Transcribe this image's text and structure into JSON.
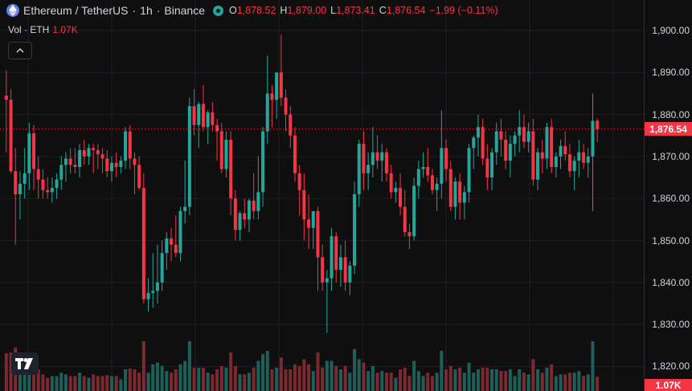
{
  "legend": {
    "symbol": "Ethereum / TetherUS",
    "sep1": "·",
    "interval": "1h",
    "sep2": "·",
    "exchange": "Binance",
    "open_label": "O",
    "open": "1,878.52",
    "high_label": "H",
    "high": "1,879.00",
    "low_label": "L",
    "low": "1,873.41",
    "close_label": "C",
    "close": "1,876.54",
    "change": "−1.99 (−0.11%)"
  },
  "volume": {
    "label": "Vol · ETH",
    "value": "1.07K"
  },
  "price_scale": {
    "ticks": [
      "1,900.00",
      "1,890.00",
      "1,880.00",
      "1,870.00",
      "1,860.00",
      "1,850.00",
      "1,840.00",
      "1,830.00",
      "1,820.00"
    ],
    "current_price": "1,876.54",
    "volume_tag": "1.07K"
  },
  "colors": {
    "up": "#26a69a",
    "down": "#f23645",
    "background": "#0f0f0f",
    "up_volume": "#1f5f5a",
    "down_volume": "#7a2a30"
  },
  "icons": {
    "symbol": "ethereum-icon",
    "status": "market-open-icon",
    "collapse": "chevron-up-icon",
    "logo": "tradingview-logo-icon"
  },
  "chart_data": {
    "type": "candlestick",
    "symbol": "ETHUSDT",
    "interval": "1h",
    "ylim": [
      1820,
      1905
    ],
    "grid": true,
    "last_price": 1876.54,
    "candles": [
      [
        1884.5,
        1890.5,
        1871,
        1883.5
      ],
      [
        1883.5,
        1886,
        1866,
        1866.5
      ],
      [
        1866.5,
        1872,
        1849,
        1861
      ],
      [
        1861,
        1866.5,
        1855,
        1863.5
      ],
      [
        1863.5,
        1872,
        1860,
        1866
      ],
      [
        1866,
        1878,
        1862,
        1875.5
      ],
      [
        1875.5,
        1877.5,
        1862,
        1867
      ],
      [
        1867,
        1870,
        1860,
        1864.5
      ],
      [
        1864.5,
        1867,
        1860,
        1862
      ],
      [
        1862,
        1865,
        1860,
        1861.5
      ],
      [
        1861.5,
        1865,
        1859,
        1862.5
      ],
      [
        1862.5,
        1866,
        1860,
        1864.5
      ],
      [
        1864.5,
        1870,
        1862,
        1868
      ],
      [
        1868,
        1871,
        1864,
        1869.5
      ],
      [
        1869.5,
        1872,
        1866,
        1868
      ],
      [
        1868,
        1872,
        1866,
        1867.5
      ],
      [
        1867.5,
        1873,
        1865,
        1871.5
      ],
      [
        1871.5,
        1874,
        1868,
        1870
      ],
      [
        1870,
        1873,
        1868,
        1872
      ],
      [
        1872,
        1873,
        1866,
        1871.5
      ],
      [
        1871.5,
        1873,
        1867,
        1870.5
      ],
      [
        1870.5,
        1872,
        1866,
        1869.5
      ],
      [
        1869.5,
        1871.5,
        1865,
        1866.5
      ],
      [
        1866.5,
        1870,
        1864,
        1868.5
      ],
      [
        1868.5,
        1871,
        1865,
        1867.5
      ],
      [
        1867.5,
        1870,
        1866,
        1869
      ],
      [
        1869,
        1877,
        1867,
        1876
      ],
      [
        1876,
        1877.5,
        1867,
        1869.5
      ],
      [
        1869.5,
        1871,
        1861,
        1868
      ],
      [
        1868,
        1870,
        1862,
        1862.5
      ],
      [
        1862.5,
        1866,
        1835,
        1836
      ],
      [
        1836,
        1841,
        1833,
        1837.5
      ],
      [
        1837.5,
        1847,
        1834,
        1838
      ],
      [
        1838,
        1849,
        1835,
        1840
      ],
      [
        1840,
        1850,
        1838,
        1847
      ],
      [
        1847,
        1852,
        1843,
        1850.5
      ],
      [
        1850.5,
        1853,
        1845,
        1849
      ],
      [
        1849,
        1856,
        1846,
        1847
      ],
      [
        1847,
        1858,
        1845,
        1857
      ],
      [
        1857,
        1869,
        1854,
        1858
      ],
      [
        1858,
        1884,
        1856,
        1882
      ],
      [
        1882,
        1886,
        1875,
        1877.5
      ],
      [
        1877.5,
        1883,
        1872,
        1882.5
      ],
      [
        1882.5,
        1887,
        1876,
        1877
      ],
      [
        1877,
        1881,
        1873,
        1880.5
      ],
      [
        1880.5,
        1883,
        1876,
        1877.5
      ],
      [
        1877.5,
        1879,
        1869,
        1876
      ],
      [
        1876,
        1878,
        1866,
        1867
      ],
      [
        1867,
        1876,
        1865,
        1874
      ],
      [
        1874,
        1876,
        1856,
        1860
      ],
      [
        1860,
        1862,
        1850,
        1852.5
      ],
      [
        1852.5,
        1857,
        1850,
        1856.5
      ],
      [
        1856.5,
        1860,
        1853,
        1855
      ],
      [
        1855,
        1860,
        1852,
        1859.5
      ],
      [
        1859.5,
        1866,
        1855,
        1857
      ],
      [
        1857,
        1870,
        1855,
        1861.5
      ],
      [
        1861.5,
        1877,
        1858,
        1876
      ],
      [
        1876,
        1894,
        1873,
        1885
      ],
      [
        1885,
        1887,
        1877,
        1883.5
      ],
      [
        1883.5,
        1890,
        1879,
        1890
      ],
      [
        1890,
        1899,
        1882,
        1884
      ],
      [
        1884,
        1886,
        1876,
        1880
      ],
      [
        1880,
        1882,
        1872,
        1875
      ],
      [
        1875,
        1877,
        1864,
        1866
      ],
      [
        1866,
        1868,
        1856,
        1862
      ],
      [
        1862,
        1866,
        1850,
        1855
      ],
      [
        1855,
        1861,
        1848,
        1853
      ],
      [
        1853,
        1857,
        1848,
        1857
      ],
      [
        1857,
        1858,
        1838,
        1846
      ],
      [
        1846,
        1849,
        1838,
        1840
      ],
      [
        1840,
        1843,
        1828,
        1841
      ],
      [
        1841,
        1853,
        1838,
        1851
      ],
      [
        1851,
        1852,
        1840,
        1843
      ],
      [
        1843,
        1849,
        1839,
        1846
      ],
      [
        1846,
        1850,
        1838,
        1840
      ],
      [
        1840,
        1845,
        1837,
        1844
      ],
      [
        1844,
        1864,
        1842,
        1861
      ],
      [
        1861,
        1874,
        1858,
        1873
      ],
      [
        1873,
        1876,
        1862,
        1866
      ],
      [
        1866,
        1871,
        1862,
        1868
      ],
      [
        1868,
        1877,
        1865,
        1871
      ],
      [
        1871,
        1875,
        1867,
        1869
      ],
      [
        1869,
        1873,
        1864,
        1871
      ],
      [
        1871,
        1872,
        1864,
        1866
      ],
      [
        1866,
        1868,
        1860,
        1861.5
      ],
      [
        1861.5,
        1864,
        1859,
        1862.5
      ],
      [
        1862.5,
        1866,
        1856,
        1858
      ],
      [
        1858,
        1862,
        1851,
        1852
      ],
      [
        1852,
        1854,
        1848,
        1851
      ],
      [
        1851,
        1865,
        1850,
        1863
      ],
      [
        1863,
        1869,
        1860,
        1867
      ],
      [
        1867,
        1871,
        1865,
        1867.5
      ],
      [
        1867.5,
        1872,
        1864,
        1865.5
      ],
      [
        1865.5,
        1867,
        1861,
        1862
      ],
      [
        1862,
        1865,
        1857,
        1863.5
      ],
      [
        1863.5,
        1881,
        1860,
        1872
      ],
      [
        1872,
        1874,
        1864,
        1867
      ],
      [
        1867,
        1869,
        1857,
        1858
      ],
      [
        1858,
        1865,
        1855,
        1864
      ],
      [
        1864,
        1866,
        1855,
        1859
      ],
      [
        1859,
        1863,
        1855,
        1861.5
      ],
      [
        1861.5,
        1873,
        1859,
        1872
      ],
      [
        1872,
        1875,
        1867,
        1874.5
      ],
      [
        1874.5,
        1880,
        1870,
        1877
      ],
      [
        1877,
        1879,
        1868,
        1869.5
      ],
      [
        1869.5,
        1873,
        1862,
        1865
      ],
      [
        1865,
        1872,
        1862,
        1871
      ],
      [
        1871,
        1878,
        1868,
        1876
      ],
      [
        1876,
        1879,
        1870,
        1874
      ],
      [
        1874,
        1876,
        1867,
        1869
      ],
      [
        1869,
        1875,
        1865,
        1873
      ],
      [
        1873,
        1876,
        1870,
        1875
      ],
      [
        1875,
        1881,
        1871,
        1877
      ],
      [
        1877,
        1880,
        1872,
        1873.5
      ],
      [
        1873.5,
        1878,
        1871,
        1876
      ],
      [
        1876,
        1879,
        1863,
        1864.5
      ],
      [
        1864.5,
        1872,
        1862,
        1871
      ],
      [
        1871,
        1874,
        1866,
        1869.5
      ],
      [
        1869.5,
        1878,
        1867,
        1877
      ],
      [
        1877,
        1879,
        1866,
        1867.5
      ],
      [
        1867.5,
        1871,
        1865,
        1870
      ],
      [
        1870,
        1874,
        1867,
        1872.5
      ],
      [
        1872.5,
        1876,
        1869,
        1870.5
      ],
      [
        1870.5,
        1873,
        1865,
        1866.5
      ],
      [
        1866.5,
        1870,
        1862,
        1869
      ],
      [
        1869,
        1874,
        1865,
        1871
      ],
      [
        1871,
        1873,
        1867,
        1868.5
      ],
      [
        1868.5,
        1872,
        1865,
        1870
      ],
      [
        1870,
        1885,
        1857,
        1878.5
      ],
      [
        1878.5,
        1879,
        1873.41,
        1876.54
      ]
    ]
  }
}
